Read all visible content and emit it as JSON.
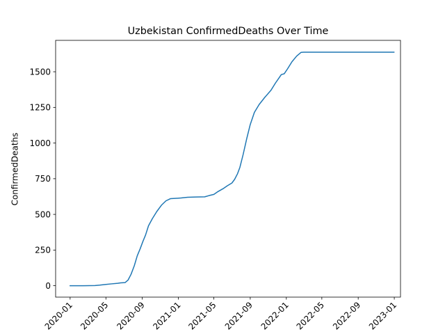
{
  "chart_data": {
    "type": "line",
    "title": "Uzbekistan  ConfirmedDeaths Over Time",
    "xlabel": "",
    "ylabel": "ConfirmedDeaths",
    "grid": false,
    "legend": "none",
    "xlim": [
      "2019-11-13",
      "2023-01-22"
    ],
    "ylim": [
      -80,
      1720
    ],
    "xticks": [
      "2020-01",
      "2020-05",
      "2020-09",
      "2021-01",
      "2021-05",
      "2021-09",
      "2022-01",
      "2022-05",
      "2022-09",
      "2023-01"
    ],
    "yticks": [
      0,
      250,
      500,
      750,
      1000,
      1250,
      1500
    ],
    "series": [
      {
        "color": "#1f77b4",
        "points": [
          [
            "2020-01-01",
            0
          ],
          [
            "2020-02-15",
            0
          ],
          [
            "2020-03-25",
            1
          ],
          [
            "2020-04-10",
            4
          ],
          [
            "2020-05-01",
            9
          ],
          [
            "2020-05-20",
            13
          ],
          [
            "2020-06-10",
            17
          ],
          [
            "2020-06-20",
            20
          ],
          [
            "2020-07-05",
            22
          ],
          [
            "2020-07-15",
            40
          ],
          [
            "2020-07-25",
            80
          ],
          [
            "2020-08-05",
            140
          ],
          [
            "2020-08-15",
            210
          ],
          [
            "2020-08-25",
            260
          ],
          [
            "2020-09-03",
            310
          ],
          [
            "2020-09-12",
            355
          ],
          [
            "2020-09-22",
            420
          ],
          [
            "2020-10-05",
            470
          ],
          [
            "2020-10-20",
            520
          ],
          [
            "2020-11-05",
            565
          ],
          [
            "2020-11-20",
            595
          ],
          [
            "2020-12-05",
            610
          ],
          [
            "2020-12-20",
            612
          ],
          [
            "2021-01-10",
            615
          ],
          [
            "2021-02-01",
            620
          ],
          [
            "2021-03-01",
            622
          ],
          [
            "2021-03-31",
            623
          ],
          [
            "2021-04-15",
            632
          ],
          [
            "2021-05-01",
            640
          ],
          [
            "2021-05-15",
            660
          ],
          [
            "2021-06-01",
            680
          ],
          [
            "2021-06-15",
            700
          ],
          [
            "2021-07-01",
            720
          ],
          [
            "2021-07-10",
            745
          ],
          [
            "2021-07-20",
            785
          ],
          [
            "2021-07-28",
            830
          ],
          [
            "2021-08-08",
            920
          ],
          [
            "2021-08-20",
            1030
          ],
          [
            "2021-09-01",
            1130
          ],
          [
            "2021-09-15",
            1215
          ],
          [
            "2021-10-01",
            1270
          ],
          [
            "2021-10-20",
            1320
          ],
          [
            "2021-11-10",
            1370
          ],
          [
            "2021-11-25",
            1420
          ],
          [
            "2021-12-10",
            1465
          ],
          [
            "2021-12-15",
            1480
          ],
          [
            "2021-12-25",
            1486
          ],
          [
            "2022-01-05",
            1520
          ],
          [
            "2022-01-20",
            1570
          ],
          [
            "2022-02-05",
            1610
          ],
          [
            "2022-02-20",
            1636
          ],
          [
            "2022-03-01",
            1637
          ],
          [
            "2022-06-01",
            1637
          ],
          [
            "2022-09-01",
            1637
          ],
          [
            "2022-12-31",
            1637
          ]
        ]
      }
    ]
  }
}
